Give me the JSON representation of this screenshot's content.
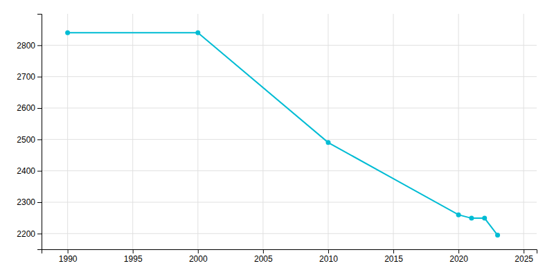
{
  "chart_data": {
    "type": "line",
    "x": [
      1990,
      2000,
      2010,
      2020,
      2021,
      2022,
      2023
    ],
    "values": [
      2840,
      2840,
      2490,
      2260,
      2249,
      2249,
      2195
    ],
    "color": "#00BCD4",
    "marker": "circle",
    "xlim": [
      1988,
      2026
    ],
    "ylim": [
      2150,
      2900
    ],
    "xticks": [
      1990,
      1995,
      2000,
      2005,
      2010,
      2015,
      2020,
      2025
    ],
    "yticks": [
      2200,
      2300,
      2400,
      2500,
      2600,
      2700,
      2800
    ],
    "grid": true
  }
}
